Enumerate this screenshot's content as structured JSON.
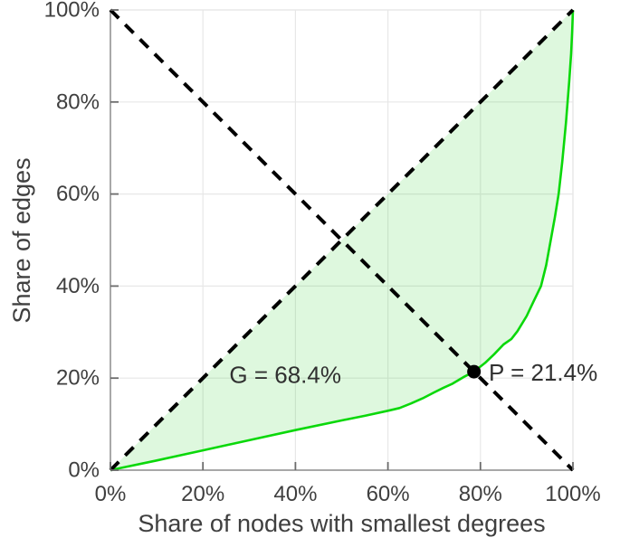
{
  "chart_data": {
    "type": "line",
    "title": "",
    "xlabel": "Share of nodes with smallest degrees",
    "ylabel": "Share of edges",
    "xlim": [
      0,
      100
    ],
    "ylim": [
      0,
      100
    ],
    "grid": true,
    "legend": "none",
    "x_tick_values": [
      0,
      20,
      40,
      60,
      80,
      100
    ],
    "x_tick_labels": [
      "0%",
      "20%",
      "40%",
      "60%",
      "80%",
      "100%"
    ],
    "y_tick_values": [
      0,
      20,
      40,
      60,
      80,
      100
    ],
    "y_tick_labels": [
      "0%",
      "20%",
      "40%",
      "60%",
      "80%",
      "100%"
    ],
    "series": [
      {
        "name": "lorenz-curve",
        "style": "solid",
        "color": "#0ad80a",
        "width": 2.6,
        "points": [
          [
            0,
            0
          ],
          [
            10,
            2.1
          ],
          [
            20,
            4.3
          ],
          [
            30,
            6.5
          ],
          [
            40,
            8.7
          ],
          [
            50,
            10.8
          ],
          [
            55,
            11.8
          ],
          [
            60,
            12.9
          ],
          [
            62.5,
            13.5
          ],
          [
            65,
            14.5
          ],
          [
            67.5,
            15.6
          ],
          [
            70,
            16.9
          ],
          [
            72,
            17.9
          ],
          [
            74,
            18.8
          ],
          [
            76.3,
            20.2
          ],
          [
            78.6,
            21.4
          ],
          [
            81,
            23.3
          ],
          [
            83,
            25.2
          ],
          [
            85,
            27.3
          ],
          [
            86.7,
            28.5
          ],
          [
            88,
            30.2
          ],
          [
            90,
            33.5
          ],
          [
            91.5,
            36.7
          ],
          [
            93.1,
            40
          ],
          [
            94.2,
            44.5
          ],
          [
            95.2,
            50
          ],
          [
            96.1,
            55
          ],
          [
            96.9,
            60
          ],
          [
            97.7,
            67
          ],
          [
            98.5,
            75.5
          ],
          [
            99.2,
            84.5
          ],
          [
            99.6,
            90.5
          ],
          [
            99.85,
            95.5
          ],
          [
            100,
            100
          ]
        ]
      },
      {
        "name": "equality-diagonal",
        "style": "dashed",
        "color": "#000000",
        "width": 4,
        "dash": "13 10",
        "points": [
          [
            0,
            0
          ],
          [
            100,
            100
          ]
        ]
      },
      {
        "name": "anti-diagonal",
        "style": "dashed",
        "color": "#000000",
        "width": 4,
        "dash": "13 10",
        "points": [
          [
            0,
            100
          ],
          [
            100,
            0
          ]
        ]
      }
    ],
    "shaded_area": {
      "description": "region enclosed between equality diagonal and lorenz curve",
      "fill": "rgba(0,200,0,0.13)"
    },
    "marker": {
      "x": 78.6,
      "y": 21.4,
      "color": "#000000",
      "radius": 7.5
    },
    "annotations": [
      {
        "id": "gini-coefficient",
        "text": "G = 68.4%",
        "x": 37.8,
        "y": 20.7,
        "anchor": "middle"
      },
      {
        "id": "p-intersection",
        "text": "P = 21.4%",
        "x": 81.8,
        "y": 21.2,
        "anchor": "start"
      }
    ],
    "gini_value_pct": 68.4,
    "p_value_pct": 21.4
  },
  "theme": {
    "background": "#ffffff",
    "text_color": "#3f3f3f",
    "grid_color": "#e7e7e7",
    "axis_color": "#a8a8a8",
    "tick_color": "#6b6b6b"
  }
}
